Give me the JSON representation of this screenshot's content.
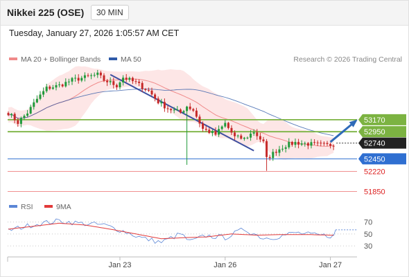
{
  "header": {
    "title": "Nikkei 225 (OSE)",
    "timeframe": "30 MIN"
  },
  "datetime": "Tuesday, January 27, 2026 1:05:57 AM CET",
  "credit": "Research © 2026 Trading Central",
  "legend": {
    "ma20": {
      "label": "MA 20 + Bollinger Bands",
      "color": "#f08a8a"
    },
    "ma50": {
      "label": "MA 50",
      "color": "#2f5aa8"
    }
  },
  "rsi_legend": {
    "rsi": {
      "label": "RSI",
      "color": "#5b86d6"
    },
    "ma9": {
      "label": "9MA",
      "color": "#e23a3a"
    }
  },
  "colors": {
    "up": "#1f9a3a",
    "down": "#c62828",
    "resistance": "#7cb342",
    "pivot": "#2f6fd1",
    "support": "#f09090",
    "arrow": "#2f6ab8",
    "trendline": "#3c4fa0",
    "band_fill": "#fcdede",
    "last_price_bg": "#222222"
  },
  "chart_data": [
    {
      "type": "candlestick",
      "title": "Nikkei 225 (OSE)",
      "timeframe": "30 MIN",
      "x_tick_labels": [
        "Jan 23",
        "Jan 26",
        "Jan 27"
      ],
      "ylim": [
        51780,
        54150
      ],
      "price_levels": [
        {
          "label": "53170",
          "value": 53170,
          "kind": "resistance"
        },
        {
          "label": "52950",
          "value": 52950,
          "kind": "resistance"
        },
        {
          "label": "52740",
          "value": 52740,
          "kind": "last"
        },
        {
          "label": "52450",
          "value": 52450,
          "kind": "pivot"
        },
        {
          "label": "52220",
          "value": 52220,
          "kind": "support"
        },
        {
          "label": "51850",
          "value": 51850,
          "kind": "support"
        }
      ],
      "anchors": [
        [
          0,
          53300
        ],
        [
          3,
          53120
        ],
        [
          6,
          53300
        ],
        [
          9,
          53550
        ],
        [
          12,
          53750
        ],
        [
          16,
          53800
        ],
        [
          20,
          53900
        ],
        [
          24,
          53950
        ],
        [
          28,
          54000
        ],
        [
          30,
          53900
        ],
        [
          34,
          53800
        ],
        [
          36,
          53950
        ],
        [
          40,
          53850
        ],
        [
          44,
          53700
        ],
        [
          47,
          53500
        ],
        [
          50,
          53380
        ],
        [
          54,
          53300
        ],
        [
          56,
          53420
        ],
        [
          58,
          53350
        ],
        [
          61,
          53000
        ],
        [
          65,
          52900
        ],
        [
          68,
          53100
        ],
        [
          71,
          52850
        ],
        [
          74,
          52820
        ],
        [
          77,
          52950
        ],
        [
          80,
          52750
        ],
        [
          81,
          52450
        ],
        [
          84,
          52600
        ],
        [
          87,
          52700
        ],
        [
          90,
          52750
        ],
        [
          95,
          52720
        ],
        [
          100,
          52700
        ],
        [
          102,
          52720
        ]
      ],
      "spikes": [
        {
          "index": 56,
          "low": 52340
        },
        {
          "index": 81,
          "low": 52230
        }
      ],
      "trendline": {
        "from": [
          32,
          54000
        ],
        "to": [
          77,
          52600
        ]
      },
      "forecast_arrow": {
        "from": [
          101,
          52760
        ],
        "to": [
          109,
          53150
        ]
      }
    },
    {
      "type": "line",
      "title": "RSI",
      "yticks": [
        "70",
        "50",
        "30"
      ],
      "ylim": [
        15,
        80
      ],
      "series": [
        {
          "name": "RSI",
          "anchors": [
            [
              0,
              56
            ],
            [
              8,
              66
            ],
            [
              16,
              72
            ],
            [
              22,
              68
            ],
            [
              30,
              65
            ],
            [
              36,
              55
            ],
            [
              42,
              43
            ],
            [
              48,
              36
            ],
            [
              54,
              50
            ],
            [
              57,
              37
            ],
            [
              62,
              47
            ],
            [
              68,
              44
            ],
            [
              74,
              58
            ],
            [
              80,
              43
            ],
            [
              84,
              45
            ],
            [
              90,
              52
            ],
            [
              96,
              48
            ],
            [
              101,
              47
            ]
          ]
        },
        {
          "name": "9MA",
          "anchors": [
            [
              0,
              58
            ],
            [
              8,
              63
            ],
            [
              16,
              68
            ],
            [
              24,
              65
            ],
            [
              32,
              58
            ],
            [
              40,
              50
            ],
            [
              48,
              42
            ],
            [
              56,
              44
            ],
            [
              62,
              45
            ],
            [
              70,
              50
            ],
            [
              78,
              48
            ],
            [
              86,
              49
            ],
            [
              94,
              49
            ],
            [
              101,
              48
            ]
          ]
        }
      ],
      "forecast_level": 57
    }
  ]
}
